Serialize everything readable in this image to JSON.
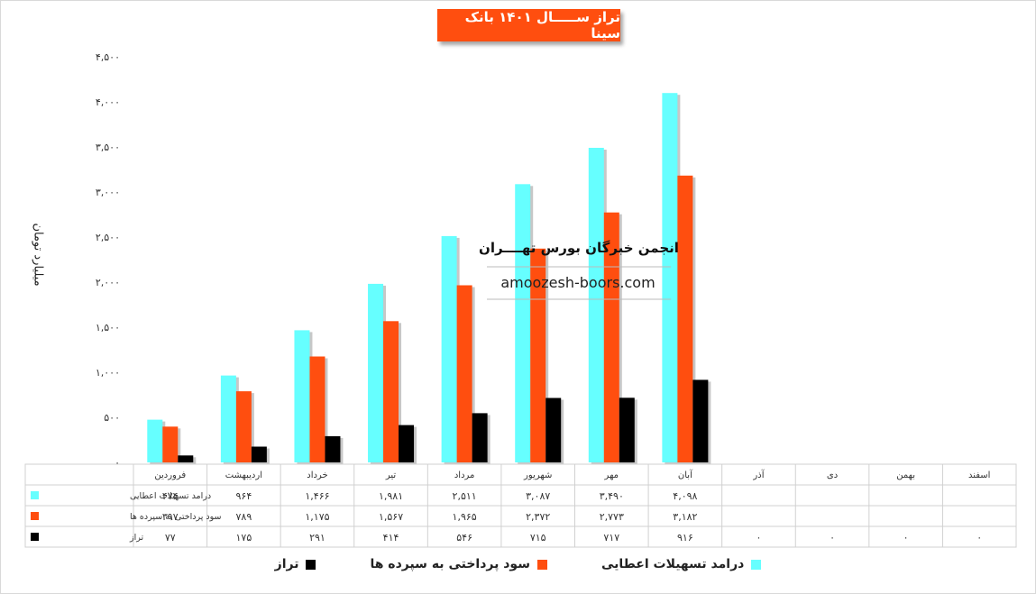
{
  "chart_data": {
    "type": "bar",
    "title": "تراز ســـــال ۱۴۰۱ بانک سینا",
    "ylabel": "میلیارد تومان",
    "ylim": [
      0,
      4500
    ],
    "yticks": [
      "۰",
      "۵۰۰",
      "۱,۰۰۰",
      "۱,۵۰۰",
      "۲,۰۰۰",
      "۲,۵۰۰",
      "۳,۰۰۰",
      "۳,۵۰۰",
      "۴,۰۰۰",
      "۴,۵۰۰"
    ],
    "ytick_values": [
      0,
      500,
      1000,
      1500,
      2000,
      2500,
      3000,
      3500,
      4000,
      4500
    ],
    "categories": [
      "فروردین",
      "اردیبهشت",
      "خرداد",
      "تیر",
      "مرداد",
      "شهریور",
      "مهر",
      "آبان",
      "آذر",
      "دی",
      "بهمن",
      "اسفند"
    ],
    "series": [
      {
        "name": "درامد تسهیلات اعطایی",
        "legend_table": "درامد تسهیلات اعطایی",
        "color": "#66ffff",
        "values": [
          474,
          964,
          1466,
          1981,
          2511,
          3087,
          3490,
          4098,
          null,
          null,
          null,
          null
        ],
        "labels": [
          "۴۷۴",
          "۹۶۴",
          "۱,۴۶۶",
          "۱,۹۸۱",
          "۲,۵۱۱",
          "۳,۰۸۷",
          "۳,۴۹۰",
          "۴,۰۹۸",
          "",
          "",
          "",
          ""
        ]
      },
      {
        "name": "سود پرداختی به سپرده ها",
        "legend_table": "سود پرداختی به سپرده ها",
        "color": "#ff4e0f",
        "values": [
          397,
          789,
          1175,
          1567,
          1965,
          2372,
          2773,
          3182,
          null,
          null,
          null,
          null
        ],
        "labels": [
          "۳۹۷",
          "۷۸۹",
          "۱,۱۷۵",
          "۱,۵۶۷",
          "۱,۹۶۵",
          "۲,۳۷۲",
          "۲,۷۷۳",
          "۳,۱۸۲",
          "",
          "",
          "",
          ""
        ]
      },
      {
        "name": "تراز",
        "legend_table": "تراز",
        "color": "#000000",
        "values": [
          77,
          175,
          291,
          414,
          546,
          715,
          717,
          916,
          0,
          0,
          0,
          0
        ],
        "labels": [
          "۷۷",
          "۱۷۵",
          "۲۹۱",
          "۴۱۴",
          "۵۴۶",
          "۷۱۵",
          "۷۱۷",
          "۹۱۶",
          "۰",
          "۰",
          "۰",
          "۰"
        ]
      }
    ],
    "grid": false,
    "legend_position": "bottom"
  },
  "watermark": {
    "line1": "انجمن خبرگان بورس تهــــران",
    "line2": "amoozesh-boors.com"
  }
}
